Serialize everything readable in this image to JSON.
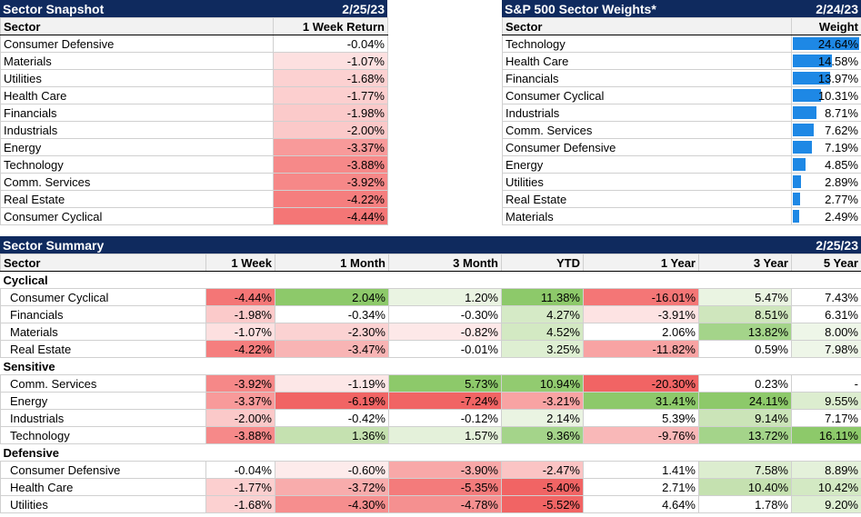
{
  "snapshot": {
    "title": "Sector Snapshot",
    "date": "2/25/23",
    "headers": [
      "Sector",
      "1 Week Return"
    ],
    "rows": [
      {
        "sector": "Consumer Defensive",
        "ret": "-0.04%",
        "color": "#ffffff"
      },
      {
        "sector": "Materials",
        "ret": "-1.07%",
        "color": "#fde0e0"
      },
      {
        "sector": "Utilities",
        "ret": "-1.68%",
        "color": "#fcd1d1"
      },
      {
        "sector": "Health Care",
        "ret": "-1.77%",
        "color": "#fccfcf"
      },
      {
        "sector": "Financials",
        "ret": "-1.98%",
        "color": "#fbcaca"
      },
      {
        "sector": "Industrials",
        "ret": "-2.00%",
        "color": "#fbc9c9"
      },
      {
        "sector": "Energy",
        "ret": "-3.37%",
        "color": "#f89a9a"
      },
      {
        "sector": "Technology",
        "ret": "-3.88%",
        "color": "#f68989"
      },
      {
        "sector": "Comm. Services",
        "ret": "-3.92%",
        "color": "#f68888"
      },
      {
        "sector": "Real Estate",
        "ret": "-4.22%",
        "color": "#f57e7e"
      },
      {
        "sector": "Consumer Cyclical",
        "ret": "-4.44%",
        "color": "#f47676"
      }
    ]
  },
  "weights": {
    "title": "S&P 500 Sector Weights*",
    "date": "2/24/23",
    "headers": [
      "Sector",
      "Weight"
    ],
    "rows": [
      {
        "sector": "Technology",
        "weight": "24.64%",
        "value": 24.64
      },
      {
        "sector": "Health Care",
        "weight": "14.58%",
        "value": 14.58
      },
      {
        "sector": "Financials",
        "weight": "13.97%",
        "value": 13.97
      },
      {
        "sector": "Consumer Cyclical",
        "weight": "10.31%",
        "value": 10.31
      },
      {
        "sector": "Industrials",
        "weight": "8.71%",
        "value": 8.71
      },
      {
        "sector": "Comm. Services",
        "weight": "7.62%",
        "value": 7.62
      },
      {
        "sector": "Consumer Defensive",
        "weight": "7.19%",
        "value": 7.19
      },
      {
        "sector": "Energy",
        "weight": "4.85%",
        "value": 4.85
      },
      {
        "sector": "Utilities",
        "weight": "2.89%",
        "value": 2.89
      },
      {
        "sector": "Real Estate",
        "weight": "2.77%",
        "value": 2.77
      },
      {
        "sector": "Materials",
        "weight": "2.49%",
        "value": 2.49
      }
    ],
    "bar_color": "#1e88e5"
  },
  "summary": {
    "title": "Sector Summary",
    "date": "2/25/23",
    "headers": [
      "Sector",
      "1 Week",
      "1 Month",
      "3 Month",
      "YTD",
      "1 Year",
      "3 Year",
      "5 Year"
    ],
    "groups": [
      {
        "name": "Cyclical",
        "rows": [
          {
            "sector": "Consumer Cyclical",
            "cells": [
              {
                "v": "-4.44%",
                "c": "#f47676"
              },
              {
                "v": "2.04%",
                "c": "#8dc96a"
              },
              {
                "v": "1.20%",
                "c": "#eaf4e2"
              },
              {
                "v": "11.38%",
                "c": "#8dc96a"
              },
              {
                "v": "-16.01%",
                "c": "#f47676"
              },
              {
                "v": "5.47%",
                "c": "#eaf4e2"
              },
              {
                "v": "7.43%",
                "c": "#ffffff"
              }
            ]
          },
          {
            "sector": "Financials",
            "cells": [
              {
                "v": "-1.98%",
                "c": "#fbcaca"
              },
              {
                "v": "-0.34%",
                "c": "#ffffff"
              },
              {
                "v": "-0.30%",
                "c": "#ffffff"
              },
              {
                "v": "4.27%",
                "c": "#d5eac6"
              },
              {
                "v": "-3.91%",
                "c": "#fde3e3"
              },
              {
                "v": "8.51%",
                "c": "#cfe6bd"
              },
              {
                "v": "6.31%",
                "c": "#ffffff"
              }
            ]
          },
          {
            "sector": "Materials",
            "cells": [
              {
                "v": "-1.07%",
                "c": "#fde0e0"
              },
              {
                "v": "-2.30%",
                "c": "#fbd2d2"
              },
              {
                "v": "-0.82%",
                "c": "#fde8e8"
              },
              {
                "v": "4.52%",
                "c": "#d3e9c3"
              },
              {
                "v": "2.06%",
                "c": "#ffffff"
              },
              {
                "v": "13.82%",
                "c": "#a4d48a"
              },
              {
                "v": "8.00%",
                "c": "#eef6e8"
              }
            ]
          },
          {
            "sector": "Real Estate",
            "cells": [
              {
                "v": "-4.22%",
                "c": "#f57e7e"
              },
              {
                "v": "-3.47%",
                "c": "#f8b4b4"
              },
              {
                "v": "-0.01%",
                "c": "#ffffff"
              },
              {
                "v": "3.25%",
                "c": "#deefd2"
              },
              {
                "v": "-11.82%",
                "c": "#f8a3a3"
              },
              {
                "v": "0.59%",
                "c": "#ffffff"
              },
              {
                "v": "7.98%",
                "c": "#eef6e8"
              }
            ]
          }
        ]
      },
      {
        "name": "Sensitive",
        "rows": [
          {
            "sector": "Comm. Services",
            "cells": [
              {
                "v": "-3.92%",
                "c": "#f68888"
              },
              {
                "v": "-1.19%",
                "c": "#fde7e7"
              },
              {
                "v": "5.73%",
                "c": "#8dc96a"
              },
              {
                "v": "10.94%",
                "c": "#92cb70"
              },
              {
                "v": "-20.30%",
                "c": "#f16464"
              },
              {
                "v": "0.23%",
                "c": "#ffffff"
              },
              {
                "v": "-",
                "c": "#ffffff"
              }
            ]
          },
          {
            "sector": "Energy",
            "cells": [
              {
                "v": "-3.37%",
                "c": "#f89a9a"
              },
              {
                "v": "-6.19%",
                "c": "#f16464"
              },
              {
                "v": "-7.24%",
                "c": "#f16464"
              },
              {
                "v": "-3.21%",
                "c": "#f8a3a3"
              },
              {
                "v": "31.41%",
                "c": "#8dc96a"
              },
              {
                "v": "24.11%",
                "c": "#8dc96a"
              },
              {
                "v": "9.55%",
                "c": "#dcedcf"
              }
            ]
          },
          {
            "sector": "Industrials",
            "cells": [
              {
                "v": "-2.00%",
                "c": "#fbc9c9"
              },
              {
                "v": "-0.42%",
                "c": "#ffffff"
              },
              {
                "v": "-0.12%",
                "c": "#ffffff"
              },
              {
                "v": "2.14%",
                "c": "#eaf4e2"
              },
              {
                "v": "5.39%",
                "c": "#ffffff"
              },
              {
                "v": "9.14%",
                "c": "#cbe4b8"
              },
              {
                "v": "7.17%",
                "c": "#ffffff"
              }
            ]
          },
          {
            "sector": "Technology",
            "cells": [
              {
                "v": "-3.88%",
                "c": "#f68989"
              },
              {
                "v": "1.36%",
                "c": "#c5e1b0"
              },
              {
                "v": "1.57%",
                "c": "#e4f1da"
              },
              {
                "v": "9.36%",
                "c": "#a4d48a"
              },
              {
                "v": "-9.76%",
                "c": "#f9b8b8"
              },
              {
                "v": "13.72%",
                "c": "#a4d48a"
              },
              {
                "v": "16.11%",
                "c": "#8dc96a"
              }
            ]
          }
        ]
      },
      {
        "name": "Defensive",
        "rows": [
          {
            "sector": "Consumer Defensive",
            "cells": [
              {
                "v": "-0.04%",
                "c": "#ffffff"
              },
              {
                "v": "-0.60%",
                "c": "#fdebeb"
              },
              {
                "v": "-3.90%",
                "c": "#f8a8a8"
              },
              {
                "v": "-2.47%",
                "c": "#fbc4c4"
              },
              {
                "v": "1.41%",
                "c": "#ffffff"
              },
              {
                "v": "7.58%",
                "c": "#dcedcf"
              },
              {
                "v": "8.89%",
                "c": "#e4f1da"
              }
            ]
          },
          {
            "sector": "Health Care",
            "cells": [
              {
                "v": "-1.77%",
                "c": "#fccfcf"
              },
              {
                "v": "-3.72%",
                "c": "#f8acac"
              },
              {
                "v": "-5.35%",
                "c": "#f47b7b"
              },
              {
                "v": "-5.40%",
                "c": "#f16464"
              },
              {
                "v": "2.71%",
                "c": "#ffffff"
              },
              {
                "v": "10.40%",
                "c": "#c5e1b0"
              },
              {
                "v": "10.42%",
                "c": "#d3e9c3"
              }
            ]
          },
          {
            "sector": "Utilities",
            "cells": [
              {
                "v": "-1.68%",
                "c": "#fcd1d1"
              },
              {
                "v": "-4.30%",
                "c": "#f68e8e"
              },
              {
                "v": "-4.78%",
                "c": "#f59090"
              },
              {
                "v": "-5.52%",
                "c": "#f16464"
              },
              {
                "v": "4.64%",
                "c": "#ffffff"
              },
              {
                "v": "1.78%",
                "c": "#ffffff"
              },
              {
                "v": "9.20%",
                "c": "#deefd2"
              }
            ]
          }
        ]
      }
    ]
  }
}
